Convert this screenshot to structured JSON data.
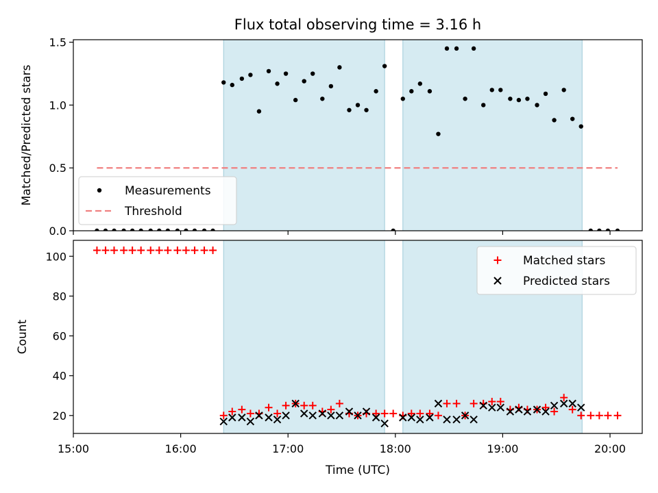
{
  "chart_data": {
    "type": "scatter",
    "title": "Flux total observing time = 3.16 h",
    "xlabel": "Time (UTC)",
    "xlim": [
      15.0,
      20.3
    ],
    "x_ticks": [
      15,
      16,
      17,
      18,
      19,
      20
    ],
    "x_tick_labels": [
      "15:00",
      "16:00",
      "17:00",
      "18:00",
      "19:00",
      "20:00"
    ],
    "shaded_intervals": [
      [
        16.4,
        17.9
      ],
      [
        18.07,
        19.74
      ]
    ],
    "panels": [
      {
        "ylabel": "Matched/Predicted stars",
        "ylim": [
          0,
          1.52
        ],
        "y_ticks": [
          0,
          0.5,
          1.0,
          1.5
        ],
        "y_tick_labels": [
          "0.0",
          "0.5",
          "1.0",
          "1.5"
        ],
        "legend_position": "lower-left",
        "series": [
          {
            "name": "Measurements",
            "marker": "dot",
            "color": "#000000",
            "x": [
              15.22,
              15.3,
              15.38,
              15.47,
              15.55,
              15.63,
              15.72,
              15.8,
              15.88,
              15.97,
              16.05,
              16.13,
              16.22,
              16.3,
              16.4,
              16.48,
              16.57,
              16.65,
              16.73,
              16.82,
              16.9,
              16.98,
              17.07,
              17.15,
              17.23,
              17.32,
              17.4,
              17.48,
              17.57,
              17.65,
              17.73,
              17.82,
              17.9,
              17.98,
              18.07,
              18.15,
              18.23,
              18.32,
              18.4,
              18.48,
              18.57,
              18.65,
              18.73,
              18.82,
              18.9,
              18.98,
              19.07,
              19.15,
              19.23,
              19.32,
              19.4,
              19.48,
              19.57,
              19.65,
              19.73,
              19.82,
              19.9,
              19.98,
              20.07
            ],
            "y": [
              0,
              0,
              0,
              0,
              0,
              0,
              0,
              0,
              0,
              0,
              0,
              0,
              0,
              0,
              1.18,
              1.16,
              1.21,
              1.24,
              0.95,
              1.27,
              1.17,
              1.25,
              1.04,
              1.19,
              1.25,
              1.05,
              1.15,
              1.3,
              0.96,
              1.0,
              0.96,
              1.11,
              1.31,
              0,
              1.05,
              1.11,
              1.17,
              1.11,
              0.77,
              1.45,
              1.45,
              1.05,
              1.45,
              1.0,
              1.12,
              1.12,
              1.05,
              1.04,
              1.05,
              1.0,
              1.09,
              0.88,
              1.12,
              0.89,
              0.83,
              0,
              0,
              0,
              0
            ]
          },
          {
            "name": "Threshold",
            "marker": "dashed-line",
            "color": "#f08080",
            "x": [
              15.22,
              20.07
            ],
            "y": [
              0.5,
              0.5
            ]
          }
        ]
      },
      {
        "ylabel": "Count",
        "ylim": [
          11,
          108
        ],
        "y_ticks": [
          20,
          40,
          60,
          80,
          100
        ],
        "y_tick_labels": [
          "20",
          "40",
          "60",
          "80",
          "100"
        ],
        "legend_position": "upper-right",
        "series": [
          {
            "name": "Matched stars",
            "marker": "plus",
            "color": "#ff0000",
            "x": [
              15.22,
              15.3,
              15.38,
              15.47,
              15.55,
              15.63,
              15.72,
              15.8,
              15.88,
              15.97,
              16.05,
              16.13,
              16.22,
              16.3,
              16.4,
              16.48,
              16.57,
              16.65,
              16.73,
              16.82,
              16.9,
              16.98,
              17.07,
              17.15,
              17.23,
              17.32,
              17.4,
              17.48,
              17.57,
              17.65,
              17.73,
              17.82,
              17.9,
              17.98,
              18.07,
              18.15,
              18.23,
              18.32,
              18.4,
              18.48,
              18.57,
              18.65,
              18.73,
              18.82,
              18.9,
              18.98,
              19.07,
              19.15,
              19.23,
              19.32,
              19.4,
              19.48,
              19.57,
              19.65,
              19.73,
              19.82,
              19.9,
              19.98,
              20.07
            ],
            "y": [
              103,
              103,
              103,
              103,
              103,
              103,
              103,
              103,
              103,
              103,
              103,
              103,
              103,
              103,
              20,
              22,
              23,
              21,
              21,
              24,
              21,
              25,
              26,
              25,
              25,
              22,
              23,
              26,
              21,
              20,
              21,
              21,
              21,
              21,
              20,
              21,
              21,
              21,
              20,
              26,
              26,
              20,
              26,
              26,
              27,
              27,
              23,
              24,
              23,
              23,
              24,
              22,
              29,
              23,
              20,
              20,
              20,
              20,
              20
            ]
          },
          {
            "name": "Predicted stars",
            "marker": "x",
            "color": "#000000",
            "x": [
              16.4,
              16.48,
              16.57,
              16.65,
              16.73,
              16.82,
              16.9,
              16.98,
              17.07,
              17.15,
              17.23,
              17.32,
              17.4,
              17.48,
              17.57,
              17.65,
              17.73,
              17.82,
              17.9,
              18.07,
              18.15,
              18.23,
              18.32,
              18.4,
              18.48,
              18.57,
              18.65,
              18.73,
              18.82,
              18.9,
              18.98,
              19.07,
              19.15,
              19.23,
              19.32,
              19.4,
              19.48,
              19.57,
              19.65,
              19.73
            ],
            "y": [
              17,
              19,
              19,
              17,
              20,
              19,
              18,
              20,
              26,
              21,
              20,
              21,
              20,
              20,
              22,
              20,
              22,
              19,
              16,
              19,
              19,
              18,
              19,
              26,
              18,
              18,
              20,
              18,
              25,
              24,
              24,
              22,
              23,
              22,
              23,
              22,
              25,
              26,
              26,
              24
            ]
          }
        ]
      }
    ]
  }
}
